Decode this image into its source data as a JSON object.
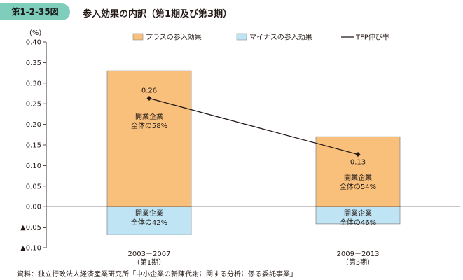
{
  "figure": {
    "number": "第1-2-35図",
    "title": "参入効果の内訳（第1期及び第3期）"
  },
  "source": "資料：独立行政法人経済産業研究所「中小企業の新陳代謝に関する分析に係る委託事業」",
  "colors": {
    "positive": "#f9c07c",
    "negative": "#bfe4f4",
    "line": "#231815",
    "badge": "#7fcdbb"
  },
  "chart_data": {
    "type": "bar",
    "stacked": true,
    "unit_label": "(%)",
    "ylim": [
      -0.1,
      0.4
    ],
    "yticks": [
      {
        "value": 0.4,
        "label": "0.40"
      },
      {
        "value": 0.35,
        "label": "0.35"
      },
      {
        "value": 0.3,
        "label": "0.30"
      },
      {
        "value": 0.25,
        "label": "0.25"
      },
      {
        "value": 0.2,
        "label": "0.20"
      },
      {
        "value": 0.15,
        "label": "0.15"
      },
      {
        "value": 0.1,
        "label": "0.10"
      },
      {
        "value": 0.05,
        "label": "0.05"
      },
      {
        "value": 0.0,
        "label": "0.00"
      },
      {
        "value": -0.05,
        "label": "▲0.05"
      },
      {
        "value": -0.1,
        "label": "▲0.10"
      }
    ],
    "categories": [
      {
        "line1": "2003－2007",
        "line2": "（第1期）"
      },
      {
        "line1": "2009－2013",
        "line2": "（第3期）"
      }
    ],
    "series": [
      {
        "name": "プラスの参入効果",
        "kind": "bar",
        "values": [
          0.33,
          0.17
        ],
        "labels": [
          [
            "開業企業",
            "全体の58%"
          ],
          [
            "開業企業",
            "全体の54%"
          ]
        ]
      },
      {
        "name": "マイナスの参入効果",
        "kind": "bar",
        "values": [
          -0.068,
          -0.042
        ],
        "labels": [
          [
            "開業企業",
            "全体の42%"
          ],
          [
            "開業企業",
            "全体の46%"
          ]
        ]
      },
      {
        "name": "TFP伸び率",
        "kind": "line",
        "values": [
          0.263,
          0.127
        ],
        "value_labels": [
          "0.26",
          "0.13"
        ]
      }
    ],
    "legend_position": "top"
  }
}
